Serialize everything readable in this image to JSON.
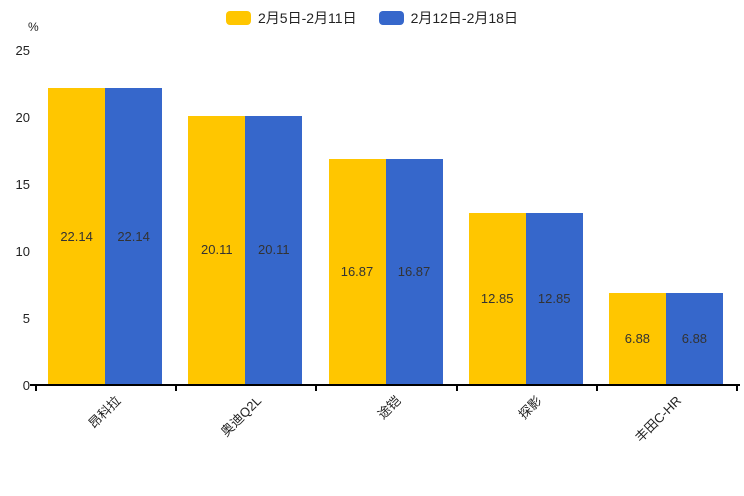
{
  "chart_data": {
    "type": "bar",
    "title": "",
    "unit_label": "%",
    "categories": [
      "昂科拉",
      "奥迪Q2L",
      "途铠",
      "探影",
      "丰田C-HR"
    ],
    "series": [
      {
        "name": "2月5日-2月11日",
        "color": "#FFC600",
        "values": [
          22.14,
          20.11,
          16.87,
          12.85,
          6.88
        ]
      },
      {
        "name": "2月12日-2月18日",
        "color": "#3667CB",
        "values": [
          22.14,
          20.11,
          16.87,
          12.85,
          6.88
        ]
      }
    ],
    "value_labels": [
      "22.14",
      "20.11",
      "16.87",
      "12.85",
      "6.88"
    ],
    "ylim": [
      0,
      25
    ],
    "yticks": [
      0,
      5,
      10,
      15,
      20,
      25
    ],
    "grid": false,
    "legend_position": "top-center",
    "value_label_position": "inside-middle",
    "xlabel": "",
    "ylabel": "%"
  },
  "colors": {
    "background": "#FFFFFF",
    "axis": "#000000",
    "tick_text": "#222222",
    "value_label_text": "#333333"
  }
}
